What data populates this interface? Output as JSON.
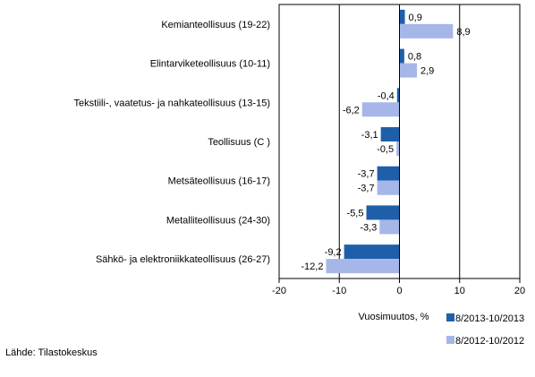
{
  "chart_data": {
    "type": "bar",
    "orientation": "horizontal",
    "categories": [
      "Kemianteollisuus (19-22)",
      "Elintarviketeollisuus (10-11)",
      "Tekstiili-, vaatetus- ja nahkateollisuus (13-15)",
      "Teollisuus (C )",
      "Metsäteollisuus (16-17)",
      "Metalliteollisuus (24-30)",
      "Sähkö- ja elektroniikkateollisuus (26-27)"
    ],
    "series": [
      {
        "name": "8/2013-10/2013",
        "color": "#1f5faa",
        "values": [
          0.9,
          0.8,
          -0.4,
          -3.1,
          -3.7,
          -5.5,
          -9.2
        ],
        "labels": [
          "0,9",
          "0,8",
          "-0,4",
          "-3,1",
          "-3,7",
          "-5,5",
          "-9,2"
        ]
      },
      {
        "name": "8/2012-10/2012",
        "color": "#a6b6e8",
        "values": [
          8.9,
          2.9,
          -6.2,
          -0.5,
          -3.7,
          -3.3,
          -12.2
        ],
        "labels": [
          "8,9",
          "2,9",
          "-6,2",
          "-0,5",
          "-3,7",
          "-3,3",
          "-12,2"
        ]
      }
    ],
    "xlabel": "Vuosimuutos, %",
    "xlim": [
      -20,
      20
    ],
    "xticks": [
      -20,
      -10,
      0,
      10,
      20
    ],
    "xtick_labels": [
      "-20",
      "-10",
      "0",
      "10",
      "20"
    ],
    "grid": "vertical",
    "legend": "bottom-right"
  },
  "source": "Lähde: Tilastokeskus"
}
